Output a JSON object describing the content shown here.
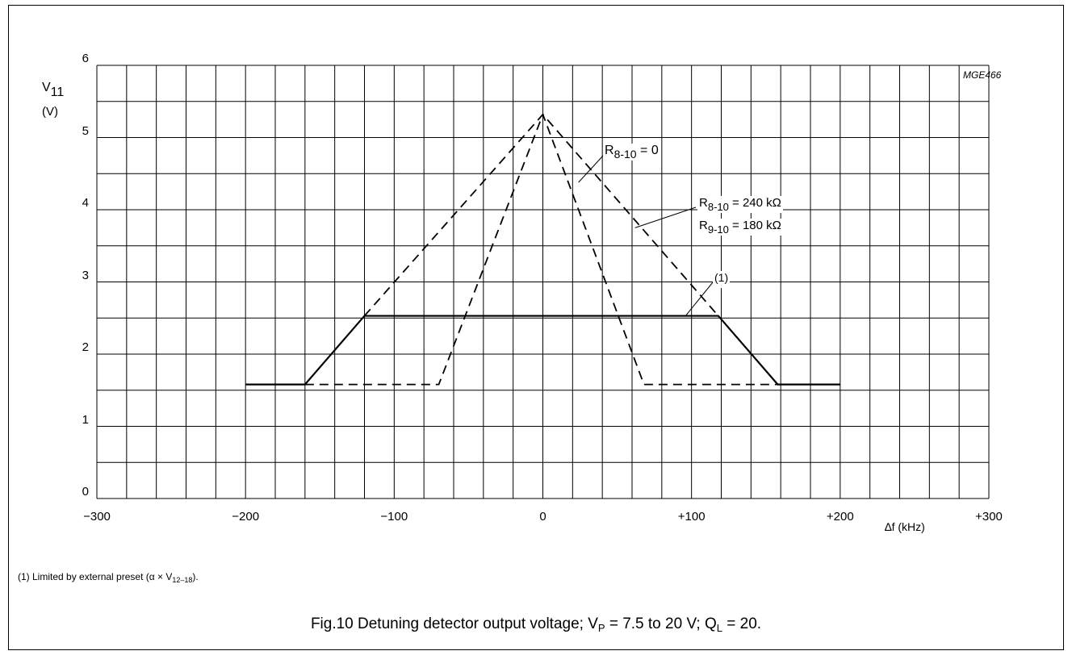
{
  "figure_code": "MGE466",
  "footnote": {
    "prefix": "(1)   Limited by external preset (α × V",
    "sub": "12–18",
    "suffix": ")."
  },
  "caption": {
    "part1": "Fig.10  Detuning detector output voltage; V",
    "sub1": "P",
    "part2": " = 7.5 to 20 V; Q",
    "sub2": "L",
    "part3": " = 20."
  },
  "chart_data": {
    "type": "line",
    "xlabel": "∆f (kHz)",
    "ylabel": {
      "symbol": "V",
      "sub": "11",
      "unit": "(V)"
    },
    "xlim": [
      -300,
      300
    ],
    "ylim": [
      0,
      6
    ],
    "grid": true,
    "x_ticks": [
      "−300",
      "−200",
      "−100",
      "0",
      "+100",
      "+200",
      "+300"
    ],
    "x_tick_values": [
      -300,
      -200,
      -100,
      0,
      100,
      200,
      300
    ],
    "y_ticks": [
      "0",
      "1",
      "2",
      "3",
      "4",
      "5",
      "6"
    ],
    "y_tick_values": [
      0,
      1,
      2,
      3,
      4,
      5,
      6
    ],
    "series": [
      {
        "name": "(1)",
        "style": "solid",
        "x": [
          -200,
          -160,
          -120,
          118,
          158,
          200
        ],
        "y": [
          1.58,
          1.58,
          2.53,
          2.53,
          1.58,
          1.58
        ]
      },
      {
        "name": "R8-10 = 0",
        "style": "dashed",
        "x": [
          -160,
          -70,
          0,
          68,
          158
        ],
        "y": [
          1.58,
          1.58,
          5.32,
          1.58,
          1.58
        ]
      },
      {
        "name": "R8-10 = 240 kΩ, R9-10 = 180 kΩ",
        "style": "dashed",
        "x": [
          -120,
          0,
          118
        ],
        "y": [
          2.53,
          5.32,
          2.53
        ]
      }
    ],
    "annotations": [
      {
        "key": "r810_zero",
        "parts": [
          "R",
          "8-10",
          " = 0"
        ]
      },
      {
        "key": "r810_240",
        "parts": [
          "R",
          "8-10",
          " = 240 kΩ"
        ]
      },
      {
        "key": "r910_180",
        "parts": [
          "R",
          "9-10",
          " = 180 kΩ"
        ]
      },
      {
        "key": "note1",
        "parts": [
          "(1)",
          "",
          ""
        ]
      }
    ]
  }
}
